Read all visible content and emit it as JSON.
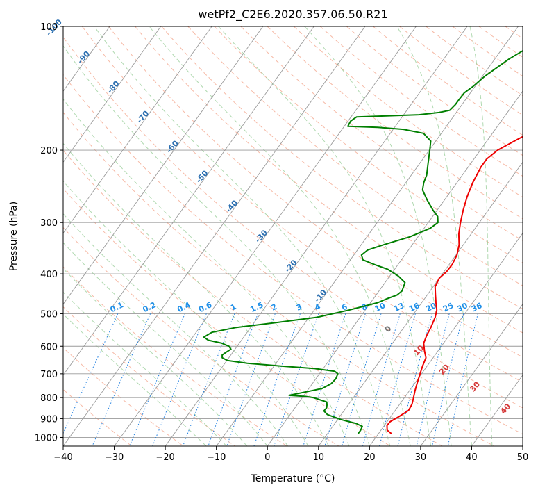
{
  "chart_data": {
    "type": "line",
    "title": "wetPf2_C2E6.2020.357.06.50.R21",
    "xlabel": "Temperature (°C)",
    "ylabel": "Pressure (hPa)",
    "xlim": [
      -40,
      50
    ],
    "ylim": [
      1050,
      100
    ],
    "y_scale": "log",
    "grid": true,
    "x_ticks": [
      -40,
      -30,
      -20,
      -10,
      0,
      10,
      20,
      30,
      40,
      50
    ],
    "y_ticks": [
      1000,
      900,
      800,
      700,
      600,
      500,
      400,
      300,
      200,
      100
    ],
    "series": [
      {
        "color": "#ee0000",
        "points": [
          [
            22.6,
            980
          ],
          [
            21.2,
            960
          ],
          [
            20.5,
            935
          ],
          [
            20.6,
            915
          ],
          [
            21.6,
            890
          ],
          [
            22.6,
            860
          ],
          [
            22.4,
            830
          ],
          [
            21.9,
            805
          ],
          [
            21.1,
            770
          ],
          [
            20.4,
            735
          ],
          [
            19.7,
            700
          ],
          [
            19.1,
            670
          ],
          [
            18.6,
            640
          ],
          [
            17.3,
            615
          ],
          [
            16.1,
            590
          ],
          [
            15.6,
            565
          ],
          [
            15.3,
            540
          ],
          [
            14.7,
            510
          ],
          [
            14.0,
            490
          ],
          [
            12.8,
            470
          ],
          [
            11.6,
            450
          ],
          [
            10.4,
            430
          ],
          [
            10.0,
            410
          ],
          [
            10.5,
            395
          ],
          [
            10.6,
            380
          ],
          [
            10.2,
            360
          ],
          [
            9.2,
            340
          ],
          [
            7.6,
            320
          ],
          [
            6.3,
            300
          ],
          [
            5.1,
            280
          ],
          [
            4.0,
            260
          ],
          [
            3.1,
            240
          ],
          [
            2.5,
            220
          ],
          [
            2.5,
            210
          ],
          [
            3.4,
            200
          ],
          [
            5.4,
            190
          ],
          [
            7.6,
            180
          ],
          [
            9.6,
            170
          ],
          [
            10.5,
            160
          ],
          [
            10.3,
            150
          ],
          [
            9.9,
            140
          ],
          [
            9.6,
            130
          ],
          [
            9.6,
            120
          ],
          [
            9.9,
            112
          ],
          [
            10.6,
            106
          ],
          [
            11.3,
            100
          ]
        ]
      },
      {
        "color": "#007f00",
        "points": [
          [
            16.0,
            980
          ],
          [
            16.0,
            960
          ],
          [
            15.8,
            940
          ],
          [
            14.2,
            925
          ],
          [
            10.7,
            905
          ],
          [
            7.3,
            880
          ],
          [
            6.1,
            862
          ],
          [
            6.2,
            848
          ],
          [
            5.9,
            835
          ],
          [
            5.4,
            820
          ],
          [
            2.1,
            800
          ],
          [
            0.5,
            795
          ],
          [
            -2.9,
            790
          ],
          [
            0.8,
            770
          ],
          [
            2.6,
            760
          ],
          [
            3.7,
            740
          ],
          [
            3.9,
            720
          ],
          [
            3.6,
            700
          ],
          [
            2.6,
            690
          ],
          [
            -1.6,
            680
          ],
          [
            -8.9,
            670
          ],
          [
            -15.6,
            660
          ],
          [
            -19.9,
            650
          ],
          [
            -21.3,
            640
          ],
          [
            -21.7,
            630
          ],
          [
            -21.3,
            620
          ],
          [
            -20.8,
            610
          ],
          [
            -21.6,
            600
          ],
          [
            -23.4,
            590
          ],
          [
            -26.5,
            580
          ],
          [
            -27.8,
            570
          ],
          [
            -26.9,
            555
          ],
          [
            -22.8,
            540
          ],
          [
            -15.5,
            525
          ],
          [
            -8.4,
            510
          ],
          [
            -3.2,
            490
          ],
          [
            1.4,
            470
          ],
          [
            2.6,
            460
          ],
          [
            4.1,
            450
          ],
          [
            4.5,
            440
          ],
          [
            3.9,
            420
          ],
          [
            1.7,
            405
          ],
          [
            -1.3,
            390
          ],
          [
            -4.5,
            380
          ],
          [
            -7.5,
            370
          ],
          [
            -8.5,
            360
          ],
          [
            -8.0,
            350
          ],
          [
            -5.7,
            340
          ],
          [
            -1.6,
            325
          ],
          [
            1.2,
            310
          ],
          [
            1.9,
            300
          ],
          [
            1.0,
            290
          ],
          [
            -0.8,
            280
          ],
          [
            -3.3,
            265
          ],
          [
            -5.7,
            250
          ],
          [
            -6.5,
            240
          ],
          [
            -7.0,
            230
          ],
          [
            -8.4,
            215
          ],
          [
            -9.9,
            200
          ],
          [
            -11.0,
            190
          ],
          [
            -13.5,
            182
          ],
          [
            -18.0,
            178
          ],
          [
            -23.3,
            176
          ],
          [
            -29.3,
            175
          ],
          [
            -29.5,
            170
          ],
          [
            -28.9,
            166
          ],
          [
            -17.0,
            164
          ],
          [
            -13.4,
            162
          ],
          [
            -11.6,
            160
          ],
          [
            -11.3,
            155
          ],
          [
            -11.3,
            150
          ],
          [
            -11.2,
            145
          ],
          [
            -10.4,
            140
          ],
          [
            -9.5,
            132
          ],
          [
            -7.2,
            120
          ],
          [
            -4.9,
            112
          ],
          [
            -2.0,
            105
          ],
          [
            0.0,
            100
          ]
        ]
      }
    ],
    "dry_adiabat_labels": [
      "-100",
      "-90",
      "-80",
      "-70",
      "-60",
      "-50",
      "-40",
      "-30",
      "-20",
      "-10"
    ],
    "mixing_ratio_labels": [
      "0.1",
      "0.2",
      "0.4",
      "0.6",
      "1",
      "1.5",
      "2",
      "3",
      "4",
      "6",
      "8",
      "10",
      "13",
      "16",
      "20",
      "25",
      "30",
      "36"
    ],
    "moist_adiabat_labels": [
      "0",
      "10",
      "20",
      "30",
      "40"
    ]
  }
}
